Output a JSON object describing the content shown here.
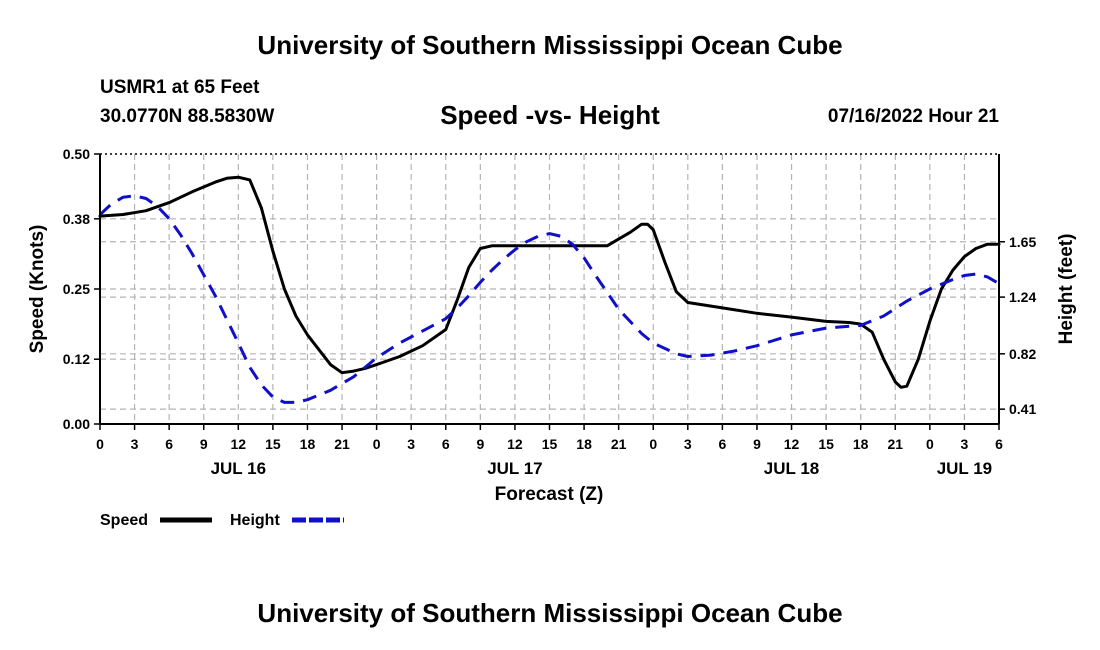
{
  "header": {
    "title": "University of Southern Mississippi Ocean Cube",
    "station": "USMR1 at 65 Feet",
    "coords": "30.0770N  88.5830W",
    "subtitle": "Speed -vs- Height",
    "datetime": "07/16/2022 Hour 21"
  },
  "footer": {
    "title": "University of Southern Mississippi Ocean Cube"
  },
  "colors": {
    "speed": "#000000",
    "height": "#1010c8",
    "grid": "#b4b4b4"
  },
  "chart_data": {
    "type": "line",
    "title": "Speed -vs- Height",
    "xlabel": "Forecast (Z)",
    "ylabel": "Speed (Knots)",
    "y2label": "Height (feet)",
    "x_unit": "hours since JUL 16 00Z",
    "xlim": [
      0,
      78
    ],
    "ylim": [
      0,
      0.5
    ],
    "y2lim": [
      0.3,
      2.3
    ],
    "x_ticks": [
      0,
      3,
      6,
      9,
      12,
      15,
      18,
      21,
      24,
      27,
      30,
      33,
      36,
      39,
      42,
      45,
      48,
      51,
      54,
      57,
      60,
      63,
      66,
      69,
      72,
      75,
      78
    ],
    "x_tick_labels": [
      "0",
      "3",
      "6",
      "9",
      "12",
      "15",
      "18",
      "21",
      "0",
      "3",
      "6",
      "9",
      "12",
      "15",
      "18",
      "21",
      "0",
      "3",
      "6",
      "9",
      "12",
      "15",
      "18",
      "21",
      "0",
      "3",
      "6"
    ],
    "date_labels": [
      {
        "x": 12,
        "label": "JUL 16"
      },
      {
        "x": 36,
        "label": "JUL 17"
      },
      {
        "x": 60,
        "label": "JUL 18"
      },
      {
        "x": 75,
        "label": "JUL 19"
      }
    ],
    "y_ticks": [
      0.0,
      0.12,
      0.25,
      0.38,
      0.5
    ],
    "y_tick_labels": [
      "0.00",
      "0.12",
      "0.25",
      "0.38",
      "0.50"
    ],
    "y2_ticks": [
      0.41,
      0.82,
      1.24,
      1.65
    ],
    "y2_tick_labels": [
      "0.41",
      "0.82",
      "1.24",
      "1.65"
    ],
    "series": [
      {
        "name": "Speed",
        "axis": "left",
        "style": "solid",
        "x": [
          0,
          2,
          4,
          6,
          8,
          10,
          11,
          12,
          13,
          14,
          15,
          16,
          17,
          18,
          20,
          21,
          22,
          23,
          24,
          26,
          28,
          30,
          31,
          32,
          33,
          34,
          35,
          36,
          40,
          44,
          46,
          47,
          47.5,
          48,
          49,
          50,
          51,
          54,
          57,
          60,
          63,
          65,
          66,
          67,
          68,
          69,
          69.5,
          70,
          71,
          72,
          73,
          74,
          75,
          76,
          77,
          78
        ],
        "values": [
          0.385,
          0.388,
          0.395,
          0.41,
          0.43,
          0.448,
          0.455,
          0.457,
          0.452,
          0.4,
          0.32,
          0.25,
          0.2,
          0.165,
          0.11,
          0.095,
          0.098,
          0.103,
          0.11,
          0.125,
          0.145,
          0.175,
          0.23,
          0.29,
          0.325,
          0.33,
          0.33,
          0.33,
          0.33,
          0.33,
          0.355,
          0.37,
          0.37,
          0.36,
          0.3,
          0.245,
          0.225,
          0.215,
          0.205,
          0.198,
          0.19,
          0.188,
          0.185,
          0.17,
          0.12,
          0.078,
          0.068,
          0.07,
          0.12,
          0.19,
          0.25,
          0.285,
          0.31,
          0.325,
          0.333,
          0.333
        ]
      },
      {
        "name": "Height",
        "axis": "right",
        "style": "dashed",
        "x": [
          0,
          1,
          2,
          3,
          4,
          5,
          6,
          7,
          8,
          10,
          12,
          13,
          14,
          15,
          16,
          17,
          18,
          20,
          22,
          24,
          26,
          28,
          30,
          31,
          32,
          33,
          34,
          35,
          36,
          37,
          38,
          39,
          40,
          41,
          42,
          43,
          45,
          47,
          48,
          50,
          51,
          53,
          55,
          57,
          60,
          63,
          66,
          68,
          70,
          72,
          74,
          75,
          76,
          77,
          78
        ],
        "values": [
          1.85,
          1.93,
          1.98,
          1.99,
          1.97,
          1.91,
          1.82,
          1.7,
          1.56,
          1.25,
          0.9,
          0.72,
          0.59,
          0.5,
          0.46,
          0.46,
          0.48,
          0.55,
          0.65,
          0.79,
          0.9,
          0.99,
          1.08,
          1.16,
          1.25,
          1.35,
          1.44,
          1.52,
          1.59,
          1.65,
          1.69,
          1.71,
          1.69,
          1.63,
          1.53,
          1.4,
          1.15,
          0.97,
          0.9,
          0.82,
          0.8,
          0.81,
          0.84,
          0.88,
          0.96,
          1.01,
          1.03,
          1.1,
          1.21,
          1.3,
          1.37,
          1.4,
          1.41,
          1.39,
          1.34
        ]
      }
    ],
    "legend": [
      {
        "label": "Speed",
        "style": "solid"
      },
      {
        "label": "Height",
        "style": "dashed"
      }
    ],
    "legend_position": "bottom-left",
    "grid": true
  }
}
